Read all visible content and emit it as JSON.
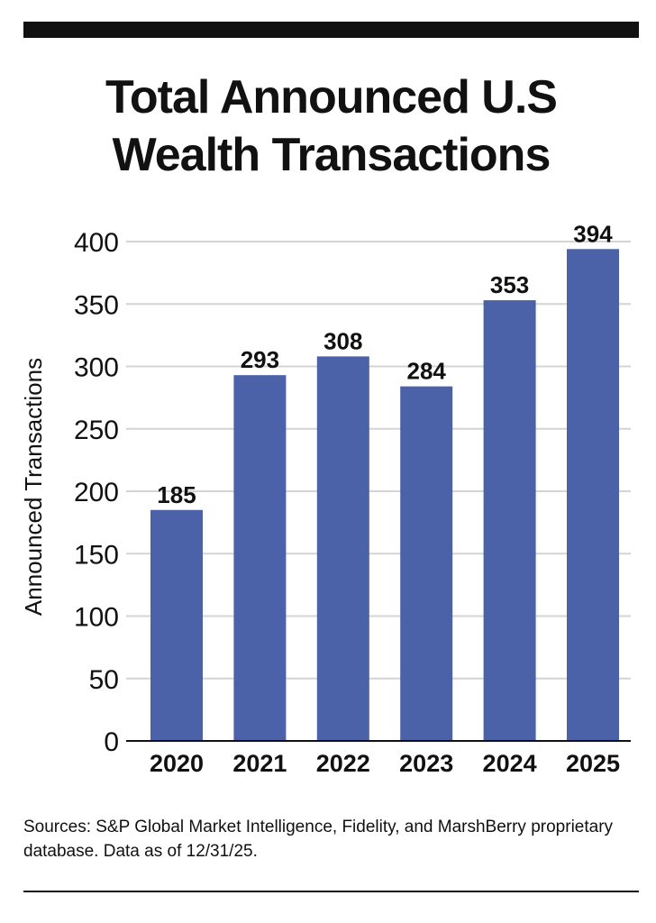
{
  "chart_data": {
    "type": "bar",
    "title": [
      "Total Announced U.S",
      "Wealth Transactions"
    ],
    "ylabel": "Announced Transactions",
    "xlabel": "",
    "categories": [
      "2020",
      "2021",
      "2022",
      "2023",
      "2024",
      "2025"
    ],
    "values": [
      185,
      293,
      308,
      284,
      353,
      394
    ],
    "yticks": [
      0,
      50,
      100,
      150,
      200,
      250,
      300,
      350,
      400
    ],
    "ylim": [
      0,
      400
    ],
    "grid": true,
    "bar_color": "#4b62a8",
    "grid_color": "#d4d4d4"
  },
  "source": "Sources: S&P Global Market Intelligence, Fidelity, and MarshBerry proprietary database. Data as of 12/31/25."
}
